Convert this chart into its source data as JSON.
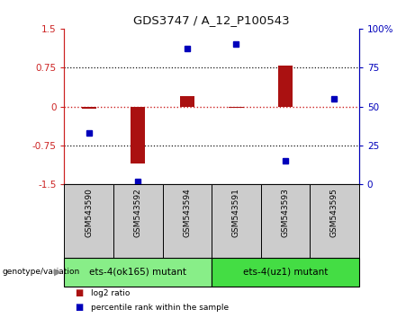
{
  "title": "GDS3747 / A_12_P100543",
  "samples": [
    "GSM543590",
    "GSM543592",
    "GSM543594",
    "GSM543591",
    "GSM543593",
    "GSM543595"
  ],
  "log2_ratio": [
    -0.05,
    -1.1,
    0.2,
    -0.02,
    0.78,
    0.0
  ],
  "percentile_rank": [
    33,
    2,
    87,
    90,
    15,
    55
  ],
  "groups": [
    {
      "label": "ets-4(ok165) mutant",
      "indices": [
        0,
        1,
        2
      ],
      "color": "#88EE88"
    },
    {
      "label": "ets-4(uz1) mutant",
      "indices": [
        3,
        4,
        5
      ],
      "color": "#44DD44"
    }
  ],
  "ylim_left": [
    -1.5,
    1.5
  ],
  "ylim_right": [
    0,
    100
  ],
  "yticks_left": [
    -1.5,
    -0.75,
    0,
    0.75,
    1.5
  ],
  "yticks_right": [
    0,
    25,
    50,
    75,
    100
  ],
  "bar_color": "#AA1111",
  "dot_color": "#0000BB",
  "hline_color": "#CC2222",
  "grid_color": "#111111",
  "bg_color": "#FFFFFF",
  "sample_box_color": "#CCCCCC",
  "legend_bar_label": "log2 ratio",
  "legend_dot_label": "percentile rank within the sample",
  "genotype_label": "genotype/variation"
}
